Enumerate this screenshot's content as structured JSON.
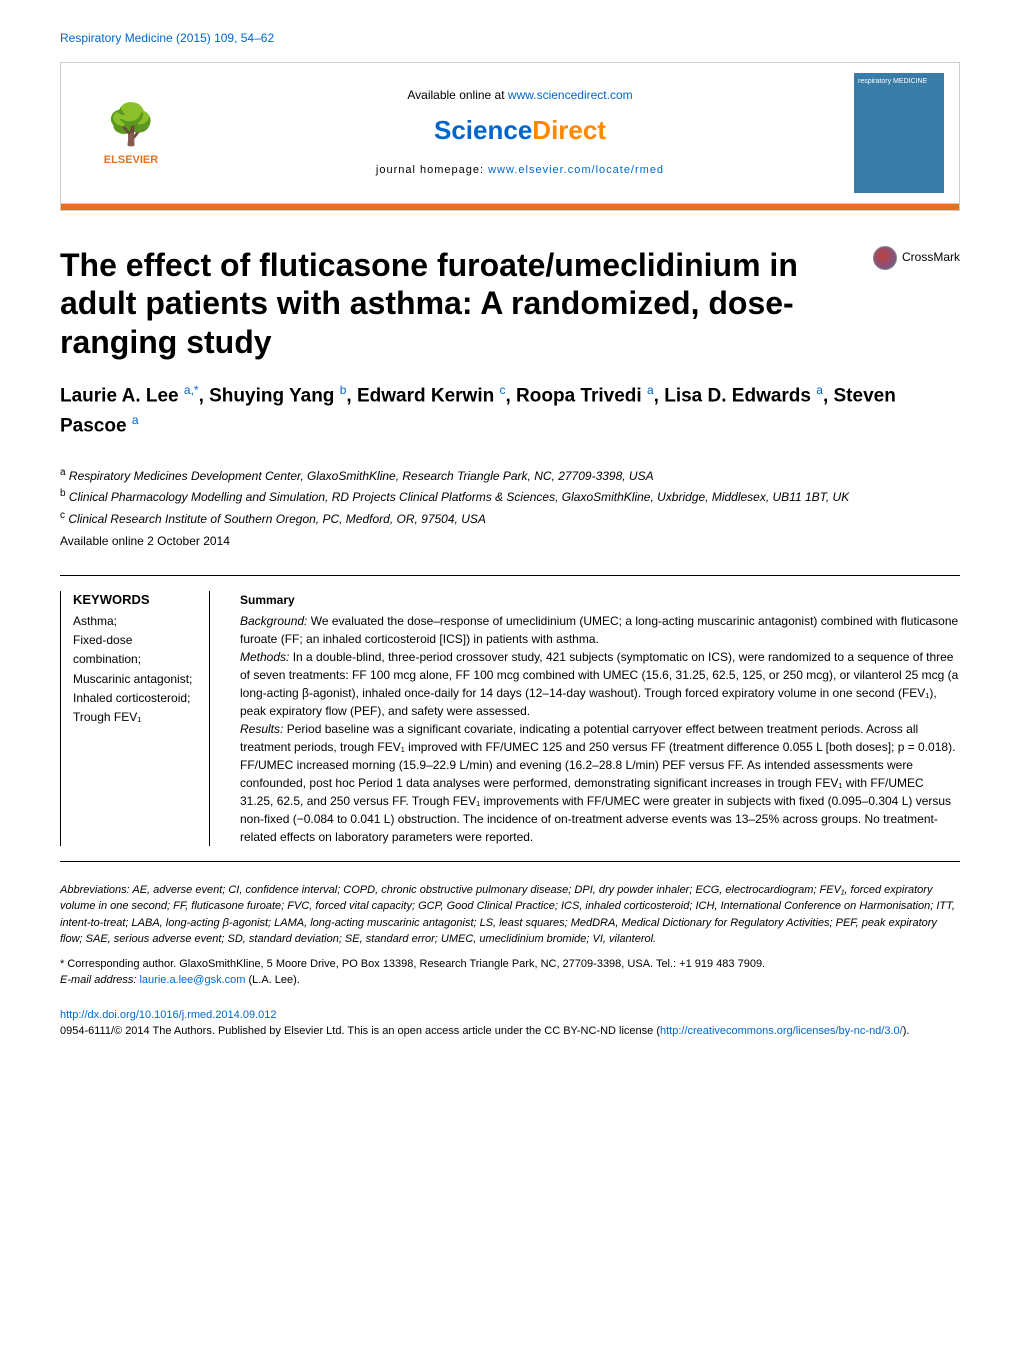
{
  "header": {
    "citation": "Respiratory Medicine (2015) 109, 54–62"
  },
  "banner": {
    "available_text": "Available online at ",
    "available_url": "www.sciencedirect.com",
    "sciencedirect_science": "Science",
    "sciencedirect_direct": "Direct",
    "homepage_label": "journal homepage: ",
    "homepage_url": "www.elsevier.com/locate/rmed",
    "journal_cover_text": "respiratory MEDICINE",
    "elsevier_label": "ELSEVIER"
  },
  "title": "The effect of fluticasone furoate/umeclidinium in adult patients with asthma: A randomized, dose-ranging study",
  "crossmark_label": "CrossMark",
  "authors_html": "Laurie A. Lee <sup>a,*</sup>, Shuying Yang <sup>b</sup>, Edward Kerwin <sup>c</sup>, Roopa Trivedi <sup>a</sup>, Lisa D. Edwards <sup>a</sup>, Steven Pascoe <sup>a</sup>",
  "affiliations": [
    {
      "sup": "a",
      "text": " Respiratory Medicines Development Center, GlaxoSmithKline, Research Triangle Park, NC, 27709-3398, USA"
    },
    {
      "sup": "b",
      "text": " Clinical Pharmacology Modelling and Simulation, RD Projects Clinical Platforms & Sciences, GlaxoSmithKline, Uxbridge, Middlesex, UB11 1BT, UK"
    },
    {
      "sup": "c",
      "text": " Clinical Research Institute of Southern Oregon, PC, Medford, OR, 97504, USA"
    }
  ],
  "available_date": "Available online 2 October 2014",
  "keywords": {
    "title": "KEYWORDS",
    "items": "Asthma;\nFixed-dose combination;\nMuscarinic antagonist;\nInhaled corticosteroid;\nTrough FEV₁"
  },
  "summary": {
    "title": "Summary",
    "background_label": "Background:",
    "background_text": " We evaluated the dose–response of umeclidinium (UMEC; a long-acting muscarinic antagonist) combined with fluticasone furoate (FF; an inhaled corticosteroid [ICS]) in patients with asthma.",
    "methods_label": "Methods:",
    "methods_text": " In a double-blind, three-period crossover study, 421 subjects (symptomatic on ICS), were randomized to a sequence of three of seven treatments: FF 100 mcg alone, FF 100 mcg combined with UMEC (15.6, 31.25, 62.5, 125, or 250 mcg), or vilanterol 25 mcg (a long-acting β-agonist), inhaled once-daily for 14 days (12–14-day washout). Trough forced expiratory volume in one second (FEV₁), peak expiratory flow (PEF), and safety were assessed.",
    "results_label": "Results:",
    "results_text": " Period baseline was a significant covariate, indicating a potential carryover effect between treatment periods. Across all treatment periods, trough FEV₁ improved with FF/UMEC 125 and 250 versus FF (treatment difference 0.055 L [both doses]; p = 0.018). FF/UMEC increased morning (15.9–22.9 L/min) and evening (16.2–28.8 L/min) PEF versus FF. As intended assessments were confounded, post hoc Period 1 data analyses were performed, demonstrating significant increases in trough FEV₁ with FF/UMEC 31.25, 62.5, and 250 versus FF. Trough FEV₁ improvements with FF/UMEC were greater in subjects with fixed (0.095–0.304 L) versus non-fixed (−0.084 to 0.041 L) obstruction. The incidence of on-treatment adverse events was 13–25% across groups. No treatment-related effects on laboratory parameters were reported."
  },
  "abbreviations": {
    "label": "Abbreviations:",
    "text": " AE, adverse event; CI, confidence interval; COPD, chronic obstructive pulmonary disease; DPI, dry powder inhaler; ECG, electrocardiogram; FEV₁, forced expiratory volume in one second; FF, fluticasone furoate; FVC, forced vital capacity; GCP, Good Clinical Practice; ICS, inhaled corticosteroid; ICH, International Conference on Harmonisation; ITT, intent-to-treat; LABA, long-acting β-agonist; LAMA, long-acting muscarinic antagonist; LS, least squares; MedDRA, Medical Dictionary for Regulatory Activities; PEF, peak expiratory flow; SAE, serious adverse event; SD, standard deviation; SE, standard error; UMEC, umeclidinium bromide; VI, vilanterol."
  },
  "corresponding": {
    "line1": "* Corresponding author. GlaxoSmithKline, 5 Moore Drive, PO Box 13398, Research Triangle Park, NC, 27709-3398, USA. Tel.: +1 919 483 7909.",
    "email_label": "E-mail address: ",
    "email": "laurie.a.lee@gsk.com",
    "email_suffix": " (L.A. Lee)."
  },
  "footer": {
    "doi": "http://dx.doi.org/10.1016/j.rmed.2014.09.012",
    "copyright": "0954-6111/© 2014 The Authors. Published by Elsevier Ltd. This is an open access article under the CC BY-NC-ND license (",
    "license_url": "http://creativecommons.org/licenses/by-nc-nd/3.0/",
    "copyright_suffix": ")."
  },
  "colors": {
    "link": "#0066cc",
    "orange_bar": "#e6711b",
    "journal_cover_bg": "#3a7ca8"
  }
}
